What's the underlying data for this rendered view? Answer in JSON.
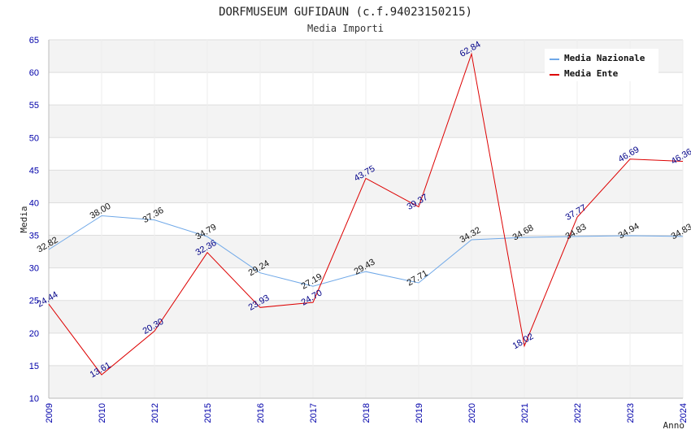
{
  "chart_data": {
    "type": "line",
    "title": "DORFMUSEUM GUFIDAUN (c.f.94023150215)",
    "subtitle": "Media Importi",
    "xlabel": "Anno",
    "ylabel": "Media",
    "ylim": [
      10,
      65
    ],
    "yticks": [
      10,
      15,
      20,
      25,
      30,
      35,
      40,
      45,
      50,
      55,
      60,
      65
    ],
    "categories": [
      "2009",
      "2010",
      "2012",
      "2015",
      "2016",
      "2017",
      "2018",
      "2019",
      "2020",
      "2021",
      "2022",
      "2023",
      "2024"
    ],
    "series": [
      {
        "name": "Media Nazionale",
        "color": "#6fa8e8",
        "values": [
          32.82,
          38.0,
          37.36,
          34.79,
          29.24,
          27.19,
          29.43,
          27.71,
          34.32,
          34.68,
          34.83,
          34.94,
          34.83
        ],
        "labels": [
          "32.82",
          "38.00",
          "37.36",
          "34.79",
          "29.24",
          "27.19",
          "29.43",
          "27.71",
          "34.32",
          "34.68",
          "34.83",
          "34.94",
          "34.83"
        ]
      },
      {
        "name": "Media Ente",
        "color": "#dd0000",
        "values": [
          24.44,
          13.61,
          20.3,
          32.36,
          23.93,
          24.7,
          43.75,
          39.37,
          62.84,
          18.02,
          37.77,
          46.69,
          46.36
        ],
        "labels": [
          "24.44",
          "13.61",
          "20.30",
          "32.36",
          "23.93",
          "24.70",
          "43.75",
          "39.37",
          "62.84",
          "18.02",
          "37.77",
          "46.69",
          "46.36"
        ]
      }
    ],
    "grid": true,
    "legend": "top-right"
  }
}
